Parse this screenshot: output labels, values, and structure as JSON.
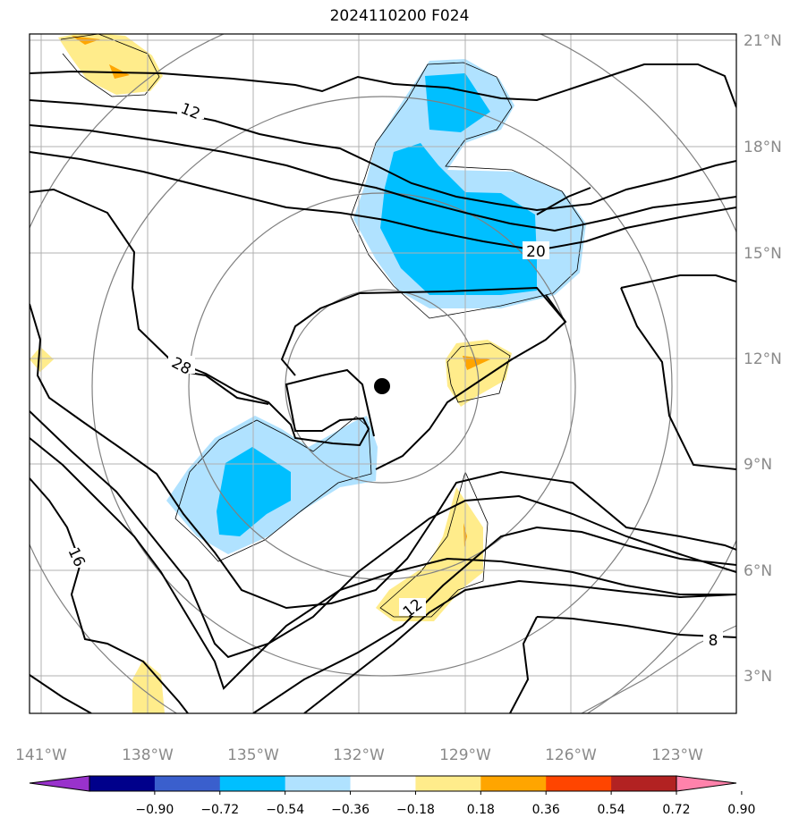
{
  "title": "2024110200 F024",
  "map": {
    "lon_labels": [
      "141°W",
      "138°W",
      "135°W",
      "132°W",
      "129°W",
      "126°W",
      "123°W"
    ],
    "lat_labels": [
      "21°N",
      "18°N",
      "15°N",
      "12°N",
      "9°N",
      "6°N",
      "3°N"
    ],
    "contour_labels": [
      "12",
      "20",
      "28",
      "16",
      "12",
      "8"
    ],
    "storm_center": {
      "lon": "131.4°W",
      "lat": "11.2°N"
    }
  },
  "colorbar": {
    "ticks": [
      "−0.90",
      "−0.72",
      "−0.54",
      "−0.36",
      "−0.18",
      "0.18",
      "0.36",
      "0.54",
      "0.72",
      "0.90"
    ],
    "colors": [
      "#9932cc",
      "#00008b",
      "#3a5fcd",
      "#00bfff",
      "#b0e2ff",
      "#ffffff",
      "#ffec8b",
      "#ffa500",
      "#ff4500",
      "#b22222",
      "#ff82ab"
    ]
  },
  "colors": {
    "shade_neg_strong": "#00bfff",
    "shade_neg_weak": "#b0e2ff",
    "shade_pos_weak": "#ffec8b",
    "shade_pos_strong": "#ffa500",
    "contour": "#000000",
    "range_ring": "#808080",
    "grid": "#b0b0b0"
  }
}
